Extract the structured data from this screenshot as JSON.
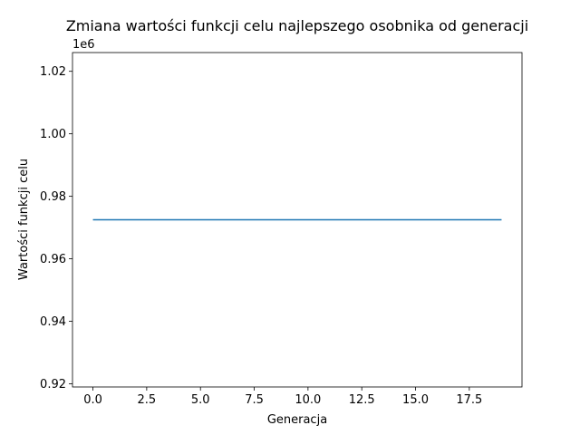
{
  "chart_data": {
    "type": "line",
    "title": "Zmiana wartości funkcji celu najlepszego osobnika od generacji",
    "xlabel": "Generacja",
    "ylabel": "Wartości funkcji celu",
    "y_offset_label": "1e6",
    "x": [
      0,
      1,
      2,
      3,
      4,
      5,
      6,
      7,
      8,
      9,
      10,
      11,
      12,
      13,
      14,
      15,
      16,
      17,
      18,
      19
    ],
    "series": [
      {
        "values": [
          972500,
          972500,
          972500,
          972500,
          972500,
          972500,
          972500,
          972500,
          972500,
          972500,
          972500,
          972500,
          972500,
          972500,
          972500,
          972500,
          972500,
          972500,
          972500,
          972500
        ]
      }
    ],
    "xlim": [
      -0.95,
      19.95
    ],
    "ylim": [
      919000,
      1026000
    ],
    "xticks": [
      0,
      2.5,
      5,
      7.5,
      10,
      12.5,
      15,
      17.5
    ],
    "xtick_labels": [
      "0.0",
      "2.5",
      "5.0",
      "7.5",
      "10.0",
      "12.5",
      "15.0",
      "17.5"
    ],
    "yticks": [
      920000,
      940000,
      960000,
      980000,
      1000000,
      1020000
    ],
    "ytick_labels": [
      "0.92",
      "0.94",
      "0.96",
      "0.98",
      "1.00",
      "1.02"
    ],
    "grid": false,
    "colors": {
      "line": "#1f77b4",
      "axes": "#000000"
    }
  }
}
